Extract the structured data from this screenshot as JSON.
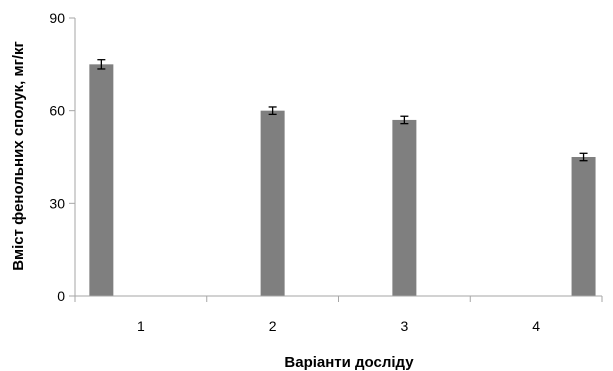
{
  "chart_data": {
    "type": "bar",
    "categories": [
      "1",
      "2",
      "3",
      "4"
    ],
    "values": [
      75,
      60,
      57,
      45
    ],
    "errors": [
      1.5,
      1.2,
      1.2,
      1.2
    ],
    "xlabel": "Варіанти досліду",
    "ylabel": "Вміст фенольних сполук, мг/кг",
    "ylim": [
      0,
      90
    ],
    "yticks": [
      0,
      30,
      60,
      90
    ],
    "grid": false,
    "bar_color": "#7f7f7f",
    "axis_color": "#a6a6a6"
  }
}
